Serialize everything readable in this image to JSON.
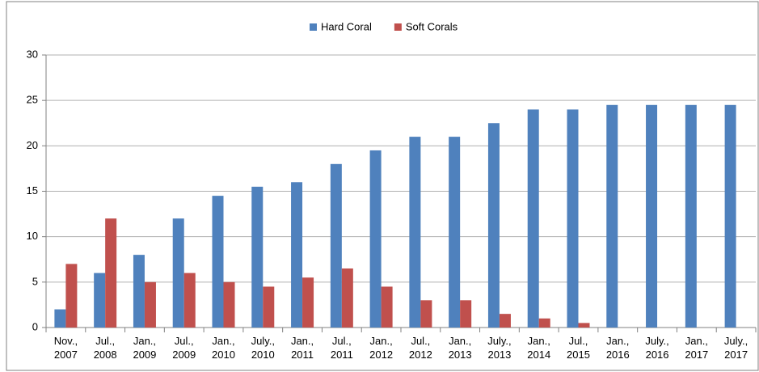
{
  "chart_data": {
    "type": "bar",
    "categories": [
      "Nov., 2007",
      "Jul., 2008",
      "Jan., 2009",
      "Jul., 2009",
      "Jan., 2010",
      "July., 2010",
      "Jan., 2011",
      "Jul., 2011",
      "Jan., 2012",
      "Jul., 2012",
      "Jan., 2013",
      "July., 2013",
      "Jan., 2014",
      "Jul., 2015",
      "Jan., 2016",
      "July., 2016",
      "Jan., 2017",
      "July., 2017"
    ],
    "series": [
      {
        "name": "Hard Coral",
        "color": "#4f81bd",
        "values": [
          2,
          6,
          8,
          12,
          14.5,
          15.5,
          16,
          18,
          19.5,
          21,
          21,
          22.5,
          24,
          24,
          24.5,
          24.5,
          24.5,
          24.5
        ]
      },
      {
        "name": "Soft Corals",
        "color": "#c0504d",
        "values": [
          7,
          12,
          5,
          6,
          5,
          4.5,
          5.5,
          6.5,
          4.5,
          3,
          3,
          1.5,
          1,
          0.5,
          null,
          null,
          null,
          null
        ]
      }
    ],
    "ylim": [
      0,
      30
    ],
    "yticks": [
      0,
      5,
      10,
      15,
      20,
      25,
      30
    ],
    "grid": true,
    "legend": "top"
  }
}
